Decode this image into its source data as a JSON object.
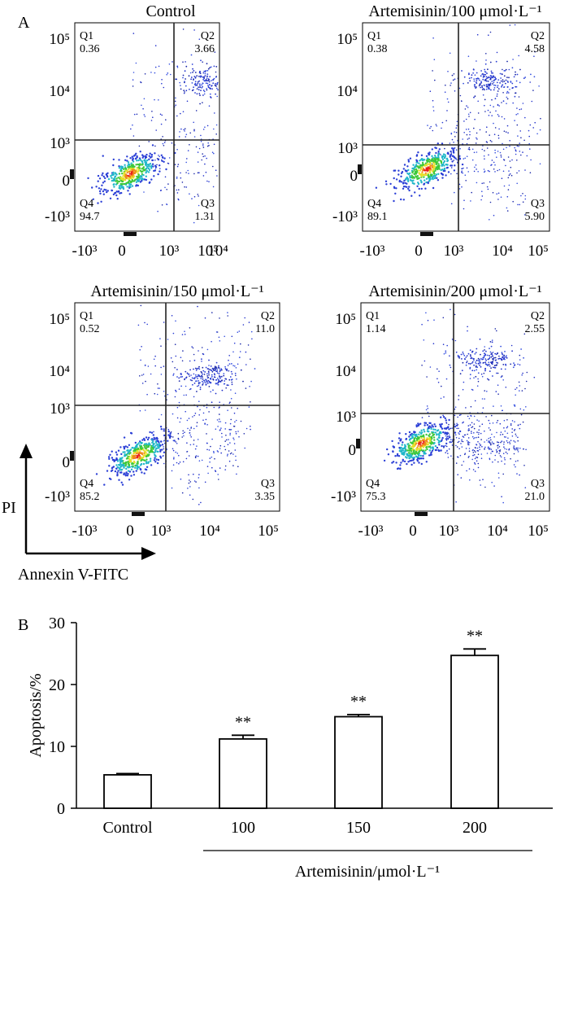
{
  "panel_labels": {
    "a": "A",
    "b": "B"
  },
  "axis_arrows": {
    "y_label": "PI",
    "x_label": "Annexin V-FITC"
  },
  "chart_data": [
    {
      "type": "scatter",
      "kind": "flow-cytometry-quadrant",
      "title": "Control",
      "x_ticks": [
        "-10³",
        "0",
        "10³",
        "10⁴",
        "10⁵"
      ],
      "y_ticks": [
        "10⁵",
        "10⁴",
        "10³",
        "0",
        "-10³"
      ],
      "quadrants": [
        {
          "name": "Q1",
          "value": "0.36"
        },
        {
          "name": "Q2",
          "value": "3.66"
        },
        {
          "name": "Q3",
          "value": "1.31"
        },
        {
          "name": "Q4",
          "value": "94.7"
        }
      ]
    },
    {
      "type": "scatter",
      "kind": "flow-cytometry-quadrant",
      "title": "Artemisinin/100 μmol·L⁻¹",
      "x_ticks": [
        "-10³",
        "0",
        "10³",
        "10⁴",
        "10⁵"
      ],
      "y_ticks": [
        "10⁵",
        "10⁴",
        "10³",
        "0",
        "-10³"
      ],
      "quadrants": [
        {
          "name": "Q1",
          "value": "0.38"
        },
        {
          "name": "Q2",
          "value": "4.58"
        },
        {
          "name": "Q3",
          "value": "5.90"
        },
        {
          "name": "Q4",
          "value": "89.1"
        }
      ]
    },
    {
      "type": "scatter",
      "kind": "flow-cytometry-quadrant",
      "title": "Artemisinin/150 μmol·L⁻¹",
      "x_ticks": [
        "-10³",
        "0",
        "10³",
        "10⁴",
        "10⁵"
      ],
      "y_ticks": [
        "10⁵",
        "10⁴",
        "10³",
        "0",
        "-10³"
      ],
      "quadrants": [
        {
          "name": "Q1",
          "value": "0.52"
        },
        {
          "name": "Q2",
          "value": "11.0"
        },
        {
          "name": "Q3",
          "value": "3.35"
        },
        {
          "name": "Q4",
          "value": "85.2"
        }
      ]
    },
    {
      "type": "scatter",
      "kind": "flow-cytometry-quadrant",
      "title": "Artemisinin/200 μmol·L⁻¹",
      "x_ticks": [
        "-10³",
        "0",
        "10³",
        "10⁴",
        "10⁵"
      ],
      "y_ticks": [
        "10⁵",
        "10⁴",
        "10³",
        "0",
        "-10³"
      ],
      "quadrants": [
        {
          "name": "Q1",
          "value": "1.14"
        },
        {
          "name": "Q2",
          "value": "2.55"
        },
        {
          "name": "Q3",
          "value": "21.0"
        },
        {
          "name": "Q4",
          "value": "75.3"
        }
      ]
    },
    {
      "type": "bar",
      "title": "",
      "categories": [
        "Control",
        "100",
        "150",
        "200"
      ],
      "values": [
        5.4,
        11.2,
        14.8,
        24.7
      ],
      "errors": [
        0.2,
        0.6,
        0.35,
        1.05
      ],
      "significance": [
        "",
        "**",
        "**",
        "**"
      ],
      "ylabel": "Apoptosis/%",
      "xlabel": "Artemisinin/μmol·L⁻¹",
      "ylim": [
        0,
        30
      ],
      "yticks": [
        "0",
        "10",
        "20",
        "30"
      ]
    }
  ]
}
